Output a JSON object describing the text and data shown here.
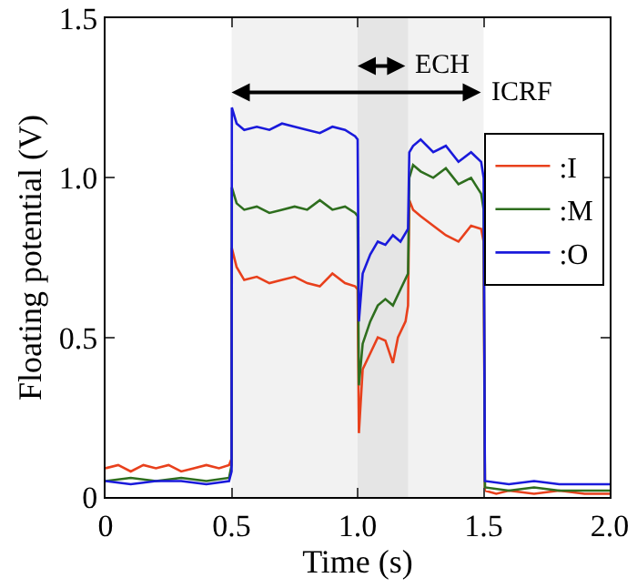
{
  "chart_data": {
    "type": "line",
    "xlabel": "Time (s)",
    "ylabel": "Floating potential (V)",
    "xlim": [
      0,
      2
    ],
    "xticks": [
      0,
      0.5,
      {
        "value": 1,
        "label": "1.0"
      },
      1.5,
      {
        "value": 2,
        "label": "2.0"
      }
    ],
    "ylim": [
      0,
      1.5
    ],
    "yticks": [
      0,
      0.5,
      {
        "value": 1,
        "label": "1.0"
      },
      1.5
    ],
    "grid": false,
    "legend": "right",
    "marker": "none",
    "line_style": "solid",
    "bands": [
      {
        "axis": "x",
        "from": 0.5,
        "to": 1.5,
        "label": "ICRF"
      },
      {
        "axis": "x",
        "from": 1.0,
        "to": 1.2,
        "label": "ECH"
      }
    ],
    "series": [
      {
        "name": ":I",
        "color": "#e8401c",
        "x": [
          0,
          0.05,
          0.1,
          0.15,
          0.2,
          0.25,
          0.3,
          0.35,
          0.4,
          0.45,
          0.49,
          0.5,
          0.501,
          0.52,
          0.55,
          0.6,
          0.65,
          0.7,
          0.75,
          0.8,
          0.85,
          0.9,
          0.95,
          0.99,
          1.0,
          1.005,
          1.02,
          1.05,
          1.08,
          1.11,
          1.14,
          1.16,
          1.19,
          1.2,
          1.205,
          1.22,
          1.25,
          1.3,
          1.35,
          1.4,
          1.45,
          1.49,
          1.5,
          1.505,
          1.55,
          1.6,
          1.7,
          1.8,
          1.9,
          2.0
        ],
        "values": [
          0.09,
          0.1,
          0.08,
          0.1,
          0.09,
          0.1,
          0.08,
          0.09,
          0.1,
          0.09,
          0.1,
          0.12,
          0.78,
          0.72,
          0.68,
          0.69,
          0.67,
          0.68,
          0.69,
          0.67,
          0.66,
          0.7,
          0.67,
          0.66,
          0.65,
          0.2,
          0.4,
          0.45,
          0.5,
          0.49,
          0.42,
          0.5,
          0.55,
          0.6,
          0.93,
          0.9,
          0.88,
          0.85,
          0.82,
          0.8,
          0.85,
          0.84,
          0.8,
          0.02,
          0.01,
          0.02,
          0.01,
          0.02,
          0.01,
          0.01
        ]
      },
      {
        "name": ":M",
        "color": "#2e6e1e",
        "x": [
          0,
          0.1,
          0.2,
          0.3,
          0.4,
          0.49,
          0.5,
          0.501,
          0.52,
          0.55,
          0.6,
          0.65,
          0.7,
          0.75,
          0.8,
          0.85,
          0.9,
          0.95,
          0.99,
          1.0,
          1.005,
          1.02,
          1.05,
          1.08,
          1.11,
          1.14,
          1.17,
          1.2,
          1.205,
          1.22,
          1.25,
          1.3,
          1.35,
          1.4,
          1.45,
          1.49,
          1.5,
          1.505,
          1.6,
          1.7,
          1.8,
          1.9,
          2.0
        ],
        "values": [
          0.05,
          0.06,
          0.05,
          0.06,
          0.05,
          0.06,
          0.1,
          0.97,
          0.92,
          0.9,
          0.91,
          0.89,
          0.9,
          0.91,
          0.9,
          0.93,
          0.9,
          0.91,
          0.89,
          0.88,
          0.35,
          0.48,
          0.55,
          0.6,
          0.62,
          0.6,
          0.65,
          0.7,
          1.0,
          1.04,
          1.02,
          1.0,
          1.03,
          0.98,
          1.0,
          0.95,
          0.9,
          0.03,
          0.02,
          0.03,
          0.02,
          0.02,
          0.02
        ]
      },
      {
        "name": ":O",
        "color": "#1a1adb",
        "x": [
          0,
          0.1,
          0.2,
          0.3,
          0.4,
          0.49,
          0.5,
          0.501,
          0.52,
          0.55,
          0.6,
          0.65,
          0.7,
          0.75,
          0.8,
          0.85,
          0.9,
          0.95,
          0.99,
          1.0,
          1.005,
          1.02,
          1.05,
          1.08,
          1.11,
          1.14,
          1.17,
          1.2,
          1.205,
          1.22,
          1.25,
          1.3,
          1.35,
          1.4,
          1.45,
          1.49,
          1.5,
          1.505,
          1.6,
          1.7,
          1.8,
          1.9,
          2.0
        ],
        "values": [
          0.05,
          0.04,
          0.05,
          0.05,
          0.04,
          0.05,
          0.08,
          1.22,
          1.17,
          1.15,
          1.16,
          1.15,
          1.17,
          1.16,
          1.15,
          1.14,
          1.16,
          1.15,
          1.13,
          1.12,
          0.55,
          0.7,
          0.76,
          0.8,
          0.79,
          0.82,
          0.8,
          0.84,
          1.08,
          1.1,
          1.12,
          1.08,
          1.1,
          1.05,
          1.08,
          1.05,
          1.0,
          0.05,
          0.04,
          0.05,
          0.04,
          0.04,
          0.04
        ]
      }
    ]
  }
}
